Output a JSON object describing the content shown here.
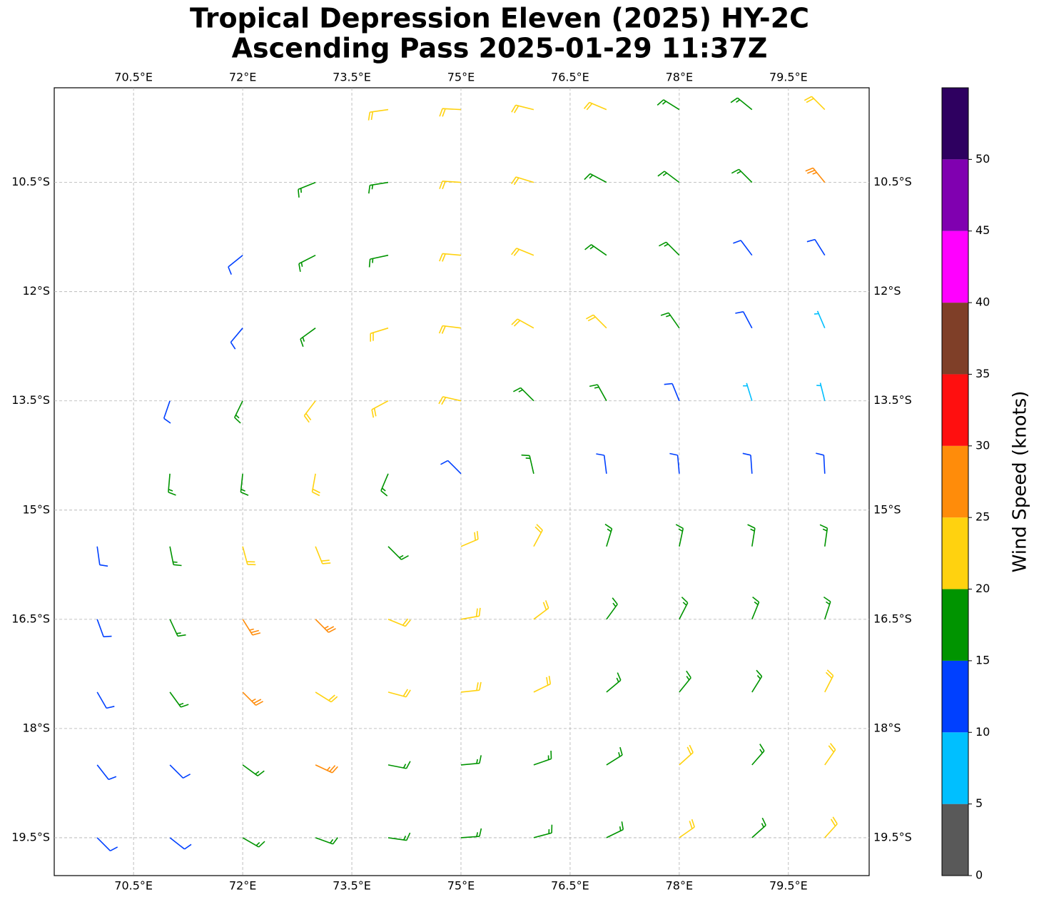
{
  "chart_data": {
    "type": "wind-barbs",
    "title": "Tropical Depression Eleven (2025) HY-2C",
    "subtitle": "Ascending Pass 2025-01-29 11:37Z",
    "xlim": [
      69.41,
      80.61
    ],
    "ylim": [
      -20.02,
      -9.2
    ],
    "xticks": [
      {
        "value": 70.5,
        "label": "70.5°E"
      },
      {
        "value": 72,
        "label": "72°E"
      },
      {
        "value": 73.5,
        "label": "73.5°E"
      },
      {
        "value": 75,
        "label": "75°E"
      },
      {
        "value": 76.5,
        "label": "76.5°E"
      },
      {
        "value": 78,
        "label": "78°E"
      },
      {
        "value": 79.5,
        "label": "79.5°E"
      }
    ],
    "yticks": [
      {
        "value": -10.5,
        "label": "10.5°S"
      },
      {
        "value": -12,
        "label": "12°S"
      },
      {
        "value": -13.5,
        "label": "13.5°S"
      },
      {
        "value": -15,
        "label": "15°S"
      },
      {
        "value": -16.5,
        "label": "16.5°S"
      },
      {
        "value": -18,
        "label": "18°S"
      },
      {
        "value": -19.5,
        "label": "19.5°S"
      }
    ],
    "grid": true,
    "barbs": {
      "lon": [
        74,
        75,
        76,
        77,
        78,
        79,
        80,
        73,
        74,
        75,
        76,
        77,
        78,
        79,
        80,
        72,
        73,
        74,
        75,
        76,
        77,
        78,
        79,
        80,
        72,
        73,
        74,
        75,
        76,
        77,
        78,
        79,
        80,
        71,
        72,
        73,
        74,
        75,
        76,
        77,
        78,
        79,
        80,
        71,
        72,
        73,
        74,
        75,
        76,
        77,
        78,
        79,
        80,
        70,
        71,
        72,
        73,
        74,
        75,
        76,
        77,
        78,
        79,
        80,
        70,
        71,
        72,
        73,
        74,
        75,
        76,
        77,
        78,
        79,
        80,
        70,
        71,
        72,
        73,
        74,
        75,
        76,
        77,
        78,
        79,
        80,
        70,
        71,
        72,
        73,
        74,
        75,
        76,
        77,
        78,
        79,
        80,
        70,
        71,
        72,
        73,
        74,
        75,
        76,
        77,
        78,
        79,
        80
      ],
      "lat": [
        -9.5,
        -9.5,
        -9.5,
        -9.5,
        -9.5,
        -9.5,
        -9.5,
        -10.5,
        -10.5,
        -10.5,
        -10.5,
        -10.5,
        -10.5,
        -10.5,
        -10.5,
        -11.5,
        -11.5,
        -11.5,
        -11.5,
        -11.5,
        -11.5,
        -11.5,
        -11.5,
        -11.5,
        -12.5,
        -12.5,
        -12.5,
        -12.5,
        -12.5,
        -12.5,
        -12.5,
        -12.5,
        -12.5,
        -13.5,
        -13.5,
        -13.5,
        -13.5,
        -13.5,
        -13.5,
        -13.5,
        -13.5,
        -13.5,
        -13.5,
        -14.5,
        -14.5,
        -14.5,
        -14.5,
        -14.5,
        -14.5,
        -14.5,
        -14.5,
        -14.5,
        -14.5,
        -15.5,
        -15.5,
        -15.5,
        -15.5,
        -15.5,
        -15.5,
        -15.5,
        -15.5,
        -15.5,
        -15.5,
        -15.5,
        -16.5,
        -16.5,
        -16.5,
        -16.5,
        -16.5,
        -16.5,
        -16.5,
        -16.5,
        -16.5,
        -16.5,
        -16.5,
        -17.5,
        -17.5,
        -17.5,
        -17.5,
        -17.5,
        -17.5,
        -17.5,
        -17.5,
        -17.5,
        -17.5,
        -17.5,
        -18.5,
        -18.5,
        -18.5,
        -18.5,
        -18.5,
        -18.5,
        -18.5,
        -18.5,
        -18.5,
        -18.5,
        -18.5,
        -19.5,
        -19.5,
        -19.5,
        -19.5,
        -19.5,
        -19.5,
        -19.5,
        -19.5,
        -19.5,
        -19.5,
        -19.5
      ],
      "speed": [
        22,
        22,
        21,
        21,
        18,
        17,
        22,
        18,
        17,
        21,
        22,
        18,
        17,
        18,
        27,
        13,
        17,
        18,
        22,
        21,
        17,
        16,
        14,
        13,
        13,
        16,
        21,
        23,
        22,
        21,
        17,
        12,
        8,
        12,
        16,
        21,
        22,
        22,
        17,
        16,
        13,
        8,
        7,
        16,
        17,
        22,
        17,
        13,
        16,
        14,
        13,
        12,
        13,
        12,
        16,
        21,
        22,
        17,
        21,
        22,
        17,
        17,
        16,
        17,
        13,
        16,
        26,
        26,
        23,
        22,
        21,
        17,
        17,
        16,
        16,
        12,
        17,
        26,
        23,
        22,
        22,
        21,
        18,
        17,
        17,
        21,
        13,
        14,
        18,
        26,
        18,
        17,
        17,
        18,
        21,
        18,
        22,
        12,
        13,
        16,
        17,
        17,
        16,
        17,
        18,
        22,
        18,
        21
      ],
      "direction": [
        262,
        273,
        284,
        293,
        302,
        309,
        315,
        248,
        261,
        274,
        287,
        298,
        307,
        315,
        321,
        231,
        243,
        258,
        275,
        292,
        305,
        315,
        323,
        328,
        220,
        234,
        253,
        277,
        299,
        315,
        325,
        332,
        337,
        199,
        206,
        217,
        242,
        283,
        315,
        331,
        338,
        343,
        346,
        185,
        186,
        190,
        203,
        315,
        347,
        353,
        355,
        356,
        357,
        172,
        169,
        165,
        158,
        135,
        67,
        28,
        17,
        12,
        9,
        8,
        160,
        155,
        148,
        135,
        112,
        80,
        53,
        36,
        27,
        22,
        18,
        150,
        144,
        135,
        122,
        105,
        84,
        64,
        50,
        39,
        32,
        27,
        142,
        135,
        126,
        115,
        101,
        85,
        71,
        58,
        48,
        41,
        35,
        135,
        128,
        120,
        110,
        98,
        86,
        75,
        64,
        55,
        48,
        42
      ]
    },
    "colorbar": {
      "label": "Wind Speed (knots)",
      "bounds": [
        0,
        5,
        10,
        15,
        20,
        25,
        30,
        35,
        40,
        45,
        50,
        55
      ],
      "colors": [
        "#595959",
        "#00bfff",
        "#0040ff",
        "#009400",
        "#ffd20f",
        "#ff8c0a",
        "#ff0f0f",
        "#7f3f28",
        "#ff00ff",
        "#8000b0",
        "#2e0060"
      ],
      "ticks": [
        0,
        5,
        10,
        15,
        20,
        25,
        30,
        35,
        40,
        45,
        50
      ]
    }
  }
}
